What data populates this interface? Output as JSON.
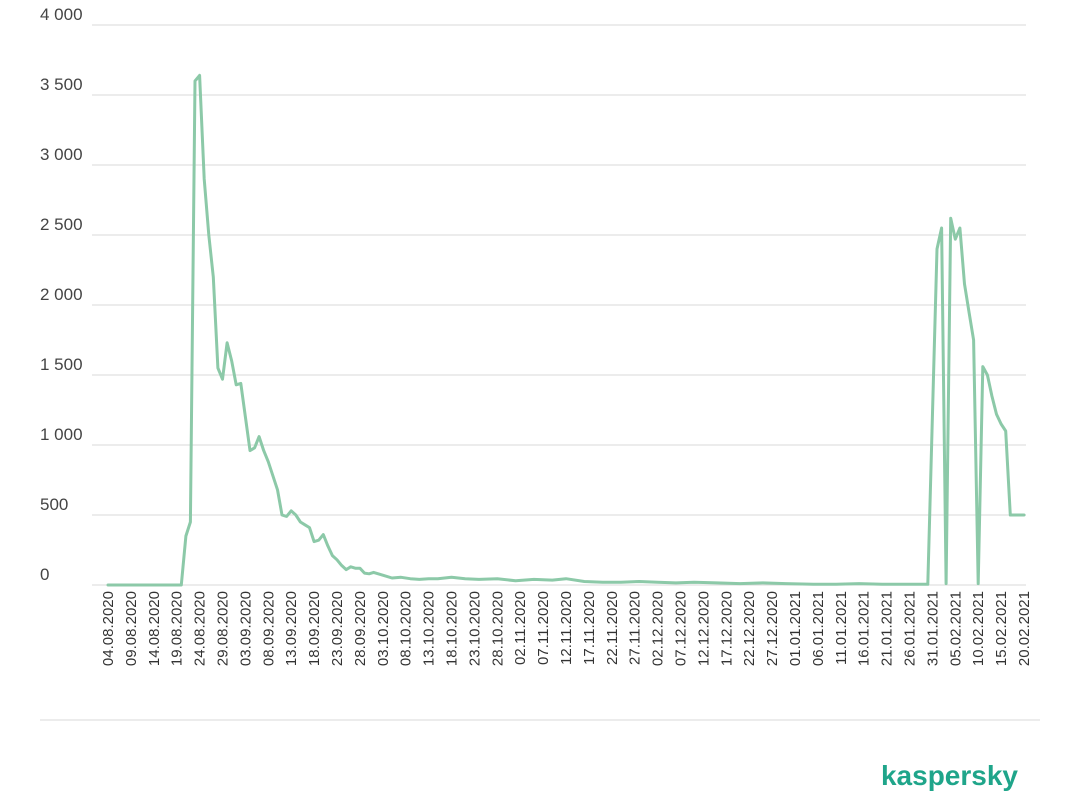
{
  "brand": {
    "name": "kaspersky",
    "color": "#1fa58a"
  },
  "chart_data": {
    "type": "line",
    "title": "",
    "xlabel": "",
    "ylabel": "",
    "ylim": [
      0,
      4000
    ],
    "grid": true,
    "legend": "none",
    "line_color": "#8cc9a8",
    "ytick_values": [
      0,
      500,
      1000,
      1500,
      2000,
      2500,
      3000,
      3500,
      4000
    ],
    "ytick_labels": [
      "0",
      "500",
      "1 000",
      "1 500",
      "2 000",
      "2 500",
      "3 000",
      "3 500",
      "4 000"
    ],
    "xtick_labels": [
      "04.08.2020",
      "09.08.2020",
      "14.08.2020",
      "19.08.2020",
      "24.08.2020",
      "29.08.2020",
      "03.09.2020",
      "08.09.2020",
      "13.09.2020",
      "18.09.2020",
      "23.09.2020",
      "28.09.2020",
      "03.10.2020",
      "08.10.2020",
      "13.10.2020",
      "18.10.2020",
      "23.10.2020",
      "28.10.2020",
      "02.11.2020",
      "07.11.2020",
      "12.11.2020",
      "17.11.2020",
      "22.11.2020",
      "27.11.2020",
      "02.12.2020",
      "07.12.2020",
      "12.12.2020",
      "17.12.2020",
      "22.12.2020",
      "27.12.2020",
      "01.01.2021",
      "06.01.2021",
      "11.01.2021",
      "16.01.2021",
      "21.01.2021",
      "26.01.2021",
      "31.01.2021",
      "05.02.2021",
      "10.02.2021",
      "15.02.2021",
      "20.02.2021"
    ],
    "series": [
      {
        "x": [
          "04.08.2020",
          "19.08.2020",
          "20.08.2020",
          "21.08.2020",
          "22.08.2020",
          "23.08.2020",
          "24.08.2020",
          "25.08.2020",
          "26.08.2020",
          "27.08.2020",
          "28.08.2020",
          "29.08.2020",
          "30.08.2020",
          "31.08.2020",
          "01.09.2020",
          "02.09.2020",
          "03.09.2020",
          "04.09.2020",
          "05.09.2020",
          "06.09.2020",
          "07.09.2020",
          "08.09.2020",
          "09.09.2020",
          "10.09.2020",
          "11.09.2020",
          "12.09.2020",
          "13.09.2020",
          "14.09.2020",
          "15.09.2020",
          "16.09.2020",
          "17.09.2020",
          "18.09.2020",
          "19.09.2020",
          "20.09.2020",
          "21.09.2020",
          "22.09.2020",
          "23.09.2020",
          "24.09.2020",
          "25.09.2020",
          "26.09.2020",
          "27.09.2020",
          "28.09.2020",
          "29.09.2020",
          "30.09.2020",
          "01.10.2020",
          "03.10.2020",
          "05.10.2020",
          "07.10.2020",
          "09.10.2020",
          "11.10.2020",
          "13.10.2020",
          "15.10.2020",
          "18.10.2020",
          "21.10.2020",
          "24.10.2020",
          "28.10.2020",
          "01.11.2020",
          "05.11.2020",
          "09.11.2020",
          "12.11.2020",
          "16.11.2020",
          "20.11.2020",
          "24.11.2020",
          "28.11.2020",
          "02.12.2020",
          "06.12.2020",
          "10.12.2020",
          "15.12.2020",
          "20.12.2020",
          "25.12.2020",
          "30.12.2020",
          "05.01.2021",
          "10.01.2021",
          "15.01.2021",
          "20.01.2021",
          "25.01.2021",
          "30.01.2021",
          "01.02.2021",
          "02.02.2021",
          "03.02.2021",
          "04.02.2021",
          "05.02.2021",
          "06.02.2021",
          "07.02.2021",
          "08.02.2021",
          "09.02.2021",
          "10.02.2021",
          "11.02.2021",
          "12.02.2021",
          "13.02.2021",
          "14.02.2021",
          "15.02.2021",
          "16.02.2021",
          "17.02.2021",
          "18.02.2021",
          "19.02.2021",
          "20.02.2021"
        ],
        "values": [
          0,
          0,
          0,
          350,
          450,
          3600,
          3640,
          2900,
          2500,
          2200,
          1550,
          1470,
          1730,
          1600,
          1430,
          1440,
          1200,
          960,
          980,
          1060,
          960,
          880,
          780,
          680,
          500,
          490,
          530,
          500,
          450,
          430,
          410,
          310,
          320,
          360,
          280,
          210,
          180,
          140,
          110,
          130,
          120,
          120,
          85,
          80,
          90,
          70,
          50,
          55,
          45,
          40,
          45,
          45,
          55,
          45,
          40,
          45,
          30,
          40,
          35,
          45,
          25,
          20,
          20,
          25,
          20,
          15,
          20,
          15,
          10,
          15,
          10,
          5,
          5,
          10,
          5,
          5,
          5,
          2400,
          2550,
          10,
          2620,
          2470,
          2550,
          2150,
          1950,
          1750,
          10,
          1560,
          1500,
          1350,
          1220,
          1150,
          1100,
          500,
          500,
          500,
          500
        ]
      }
    ]
  }
}
